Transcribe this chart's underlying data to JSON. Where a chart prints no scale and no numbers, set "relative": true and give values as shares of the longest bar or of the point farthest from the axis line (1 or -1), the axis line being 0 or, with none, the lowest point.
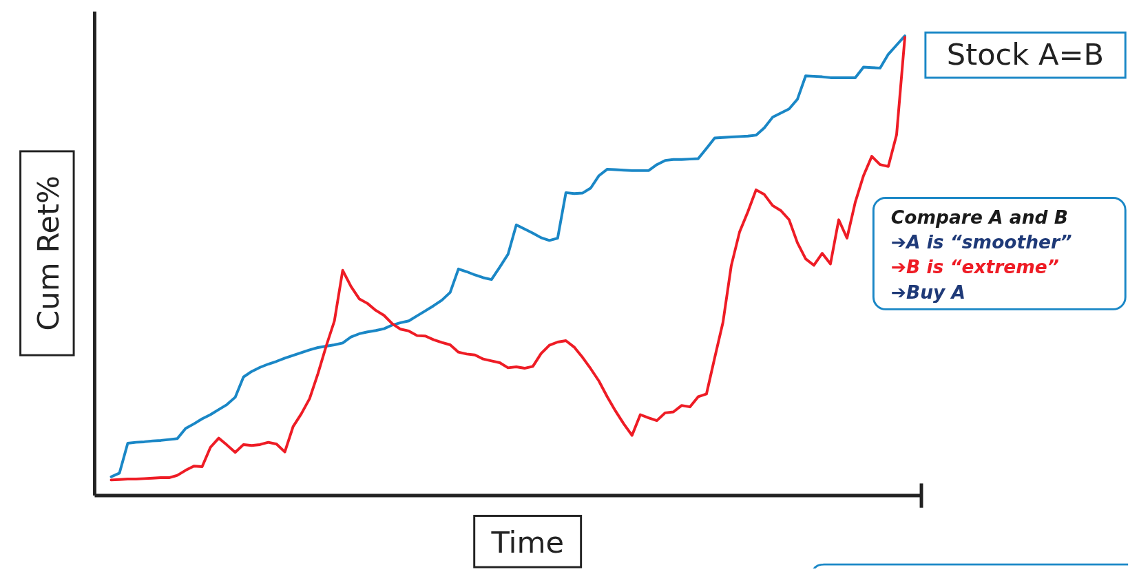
{
  "chart_data": {
    "type": "line",
    "relative": true,
    "xlabel": "Time",
    "ylabel": "Cum Ret%",
    "categories": [
      null,
      null,
      null,
      null,
      null,
      null,
      null,
      null,
      null,
      null,
      null,
      null,
      null,
      null,
      null,
      null,
      null,
      null,
      null,
      null,
      null,
      null,
      null,
      null,
      null,
      null,
      null,
      null,
      null,
      null,
      null,
      null,
      null,
      null,
      null,
      null,
      null,
      null,
      null,
      null,
      null,
      null,
      null,
      null,
      null,
      null,
      null,
      null,
      null,
      null,
      null,
      null,
      null,
      null,
      null,
      null,
      null,
      null,
      null,
      null,
      null,
      null,
      null,
      null,
      null,
      null,
      null,
      null,
      null,
      null,
      null,
      null,
      null,
      null,
      null,
      null,
      null,
      null,
      null,
      null,
      null,
      null,
      null,
      null,
      null,
      null,
      null,
      null,
      null,
      null,
      null,
      null,
      null,
      null,
      null,
      null,
      null
    ],
    "annotations": [
      "Stock A=B",
      "Compare A and B",
      "➔A is “smoother”",
      "➔B is “extreme”",
      "➔Buy A"
    ],
    "series": [
      {
        "color": "#1a87c6",
        "values": [
          0.041,
          0.049,
          0.114,
          0.116,
          0.117,
          0.119,
          0.12,
          0.122,
          0.124,
          0.146,
          0.156,
          0.167,
          0.176,
          0.187,
          0.198,
          0.214,
          0.258,
          0.27,
          0.279,
          0.286,
          0.292,
          0.299,
          0.305,
          0.311,
          0.317,
          0.322,
          0.325,
          0.328,
          0.332,
          0.345,
          0.352,
          0.356,
          0.359,
          0.363,
          0.371,
          0.376,
          0.38,
          0.391,
          0.402,
          0.413,
          0.425,
          0.442,
          0.493,
          0.487,
          0.48,
          0.474,
          0.47,
          0.497,
          0.525,
          0.589,
          0.58,
          0.571,
          0.561,
          0.555,
          0.56,
          0.659,
          0.657,
          0.658,
          0.669,
          0.696,
          0.71,
          0.709,
          0.708,
          0.707,
          0.707,
          0.707,
          0.72,
          0.729,
          0.731,
          0.731,
          0.732,
          0.733,
          0.755,
          0.778,
          0.779,
          0.78,
          0.781,
          0.782,
          0.784,
          0.8,
          0.823,
          0.832,
          0.841,
          0.862,
          0.913,
          0.912,
          0.911,
          0.909,
          0.909,
          0.909,
          0.909,
          0.932,
          0.931,
          0.93,
          0.96,
          0.98,
          1
        ]
      },
      {
        "color": "#ee1c25",
        "values": [
          0.034,
          0.035,
          0.036,
          0.036,
          0.037,
          0.038,
          0.039,
          0.039,
          0.044,
          0.055,
          0.064,
          0.063,
          0.105,
          0.125,
          0.11,
          0.094,
          0.111,
          0.109,
          0.111,
          0.116,
          0.112,
          0.095,
          0.15,
          0.178,
          0.211,
          0.265,
          0.325,
          0.38,
          0.49,
          0.455,
          0.428,
          0.418,
          0.403,
          0.392,
          0.374,
          0.362,
          0.358,
          0.348,
          0.347,
          0.339,
          0.333,
          0.328,
          0.312,
          0.308,
          0.306,
          0.297,
          0.293,
          0.289,
          0.278,
          0.28,
          0.277,
          0.281,
          0.309,
          0.327,
          0.334,
          0.337,
          0.323,
          0.301,
          0.276,
          0.249,
          0.215,
          0.184,
          0.156,
          0.131,
          0.176,
          0.169,
          0.163,
          0.18,
          0.182,
          0.196,
          0.193,
          0.215,
          0.221,
          0.3,
          0.377,
          0.5,
          0.573,
          0.617,
          0.665,
          0.655,
          0.631,
          0.62,
          0.6,
          0.55,
          0.515,
          0.501,
          0.527,
          0.504,
          0.6,
          0.56,
          0.638,
          0.696,
          0.738,
          0.72,
          0.716,
          0.785,
          0.997
        ]
      }
    ]
  }
}
